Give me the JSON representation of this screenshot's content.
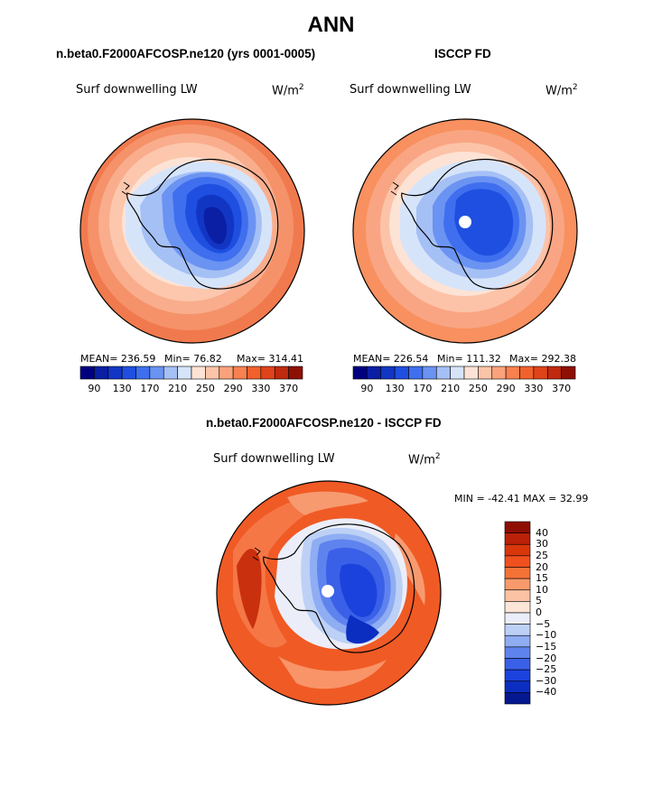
{
  "figure": {
    "title": "ANN"
  },
  "panels": {
    "model": {
      "title": "n.beta0.F2000AFCOSP.ne120 (yrs 0001-0005)",
      "variable": "Surf downwelling LW",
      "units_base": "W/m",
      "units_exp": "2",
      "mean_label": "MEAN=",
      "mean": "236.59",
      "min_label": "Min=",
      "min": "76.82",
      "max_label": "Max=",
      "max": "314.41"
    },
    "obs": {
      "title": "ISCCP FD",
      "variable": "Surf downwelling LW",
      "units_base": "W/m",
      "units_exp": "2",
      "mean_label": "MEAN=",
      "mean": "226.54",
      "min_label": "Min=",
      "min": "111.32",
      "max_label": "Max=",
      "max": "292.38"
    },
    "diff": {
      "title": "n.beta0.F2000AFCOSP.ne120 - ISCCP FD",
      "variable": "Surf downwelling LW",
      "units_base": "W/m",
      "units_exp": "2",
      "minmax": "MIN = -42.41 MAX =  32.99"
    }
  },
  "colorbars": {
    "abs": {
      "ticks": [
        "90",
        "130",
        "170",
        "210",
        "250",
        "290",
        "330",
        "370"
      ],
      "colors": [
        "#00007f",
        "#0a1fa3",
        "#1236c4",
        "#1f4fe0",
        "#3f6fef",
        "#6b93f2",
        "#a5c0f5",
        "#d6e4fa",
        "#fde3d5",
        "#fcc4a8",
        "#fba27c",
        "#f8814f",
        "#f2612b",
        "#e0431a",
        "#c02a0e",
        "#8e1005"
      ]
    },
    "diff": {
      "ticks": [
        "40",
        "30",
        "25",
        "20",
        "15",
        "10",
        "5",
        "0",
        "−5",
        "−10",
        "−15",
        "−20",
        "−25",
        "−30",
        "−40"
      ],
      "colors": [
        "#8e0e04",
        "#bb2008",
        "#d9360c",
        "#f0501e",
        "#f57237",
        "#f89a6c",
        "#fbc2a4",
        "#fde6d8",
        "#ebeef8",
        "#bdd0f6",
        "#8fadf3",
        "#5f83ee",
        "#3a60e8",
        "#1c42dd",
        "#0b2ec0",
        "#04188f"
      ]
    }
  }
}
